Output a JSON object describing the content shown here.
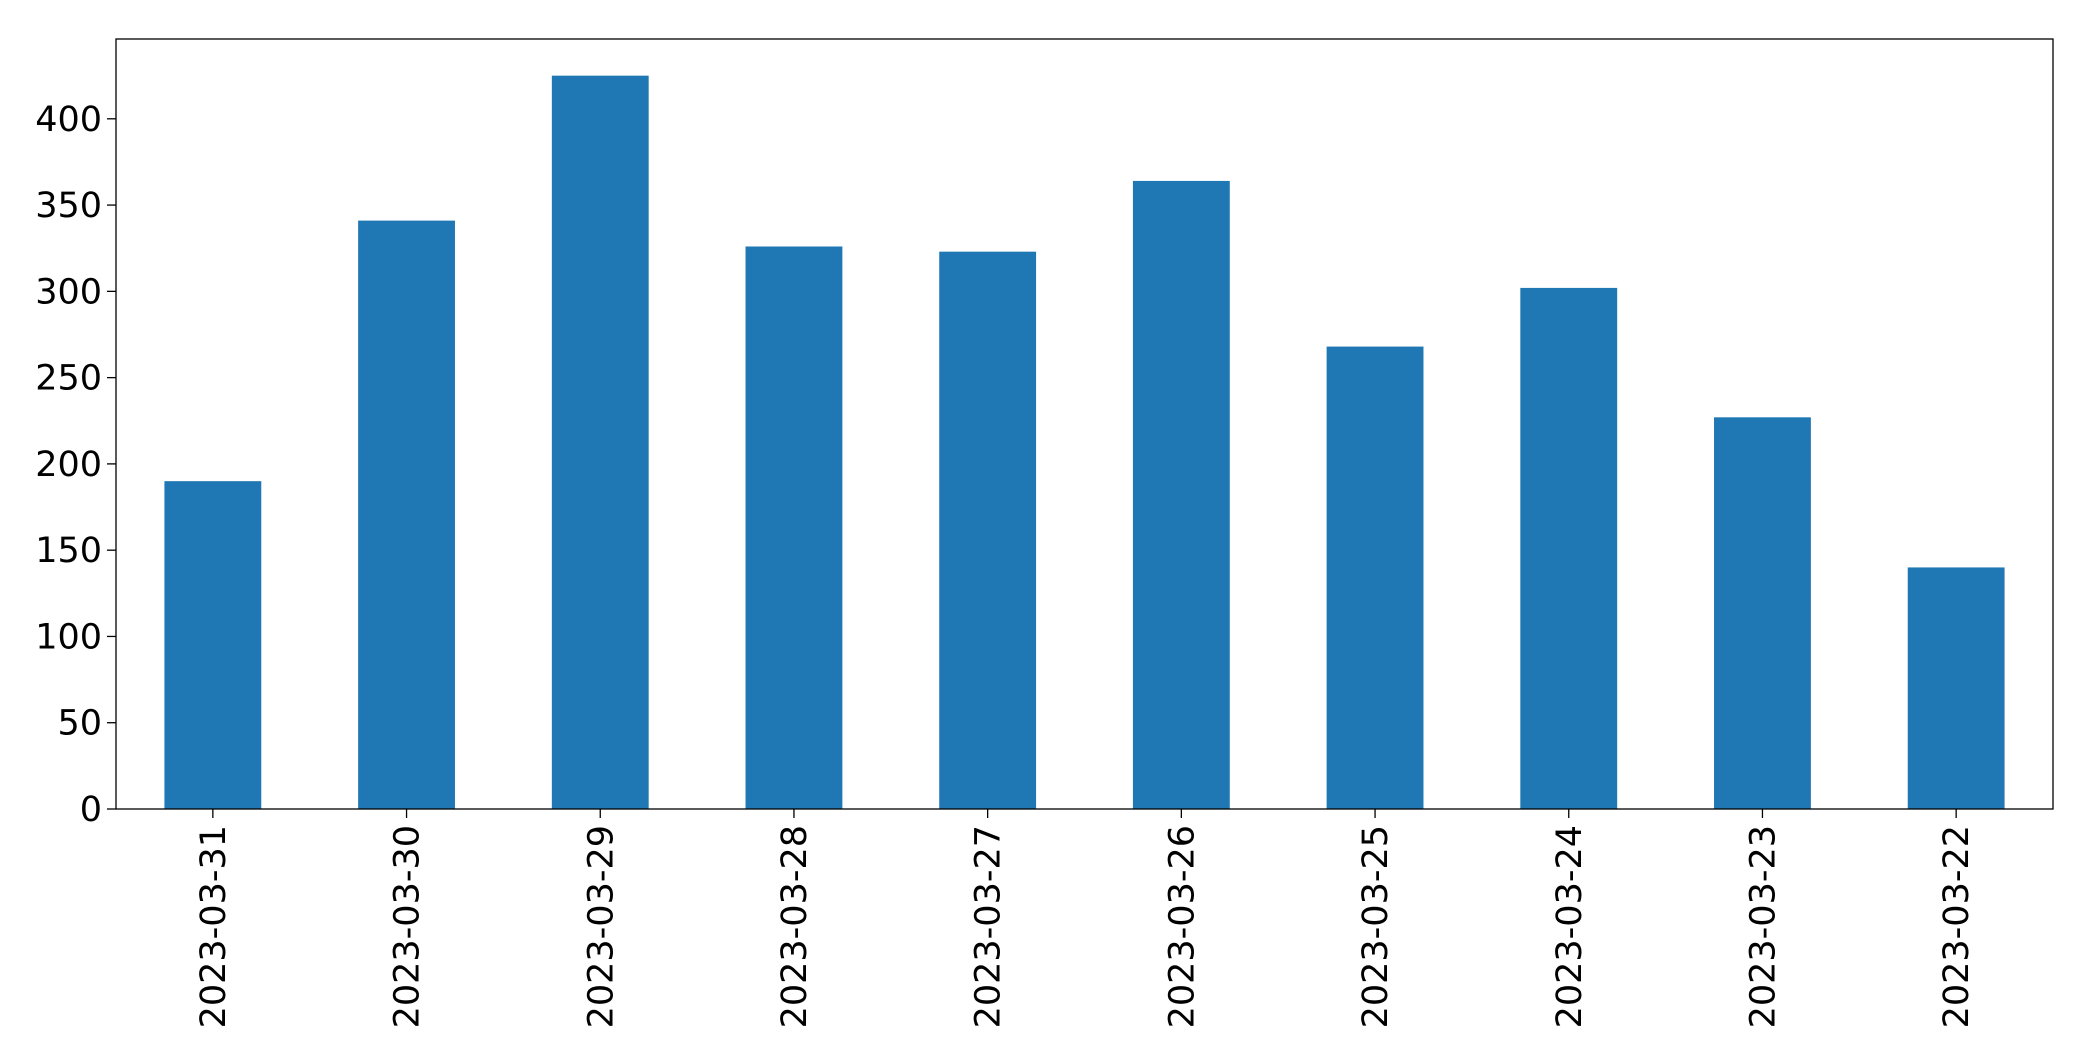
{
  "chart_data": {
    "type": "bar",
    "categories": [
      "2023-03-31",
      "2023-03-30",
      "2023-03-29",
      "2023-03-28",
      "2023-03-27",
      "2023-03-26",
      "2023-03-25",
      "2023-03-24",
      "2023-03-23",
      "2023-03-22"
    ],
    "values": [
      190,
      341,
      425,
      326,
      323,
      364,
      268,
      302,
      227,
      140
    ],
    "color": "#1f77b4",
    "ylim": [
      0,
      446.25
    ],
    "yticks": [
      0,
      50,
      100,
      150,
      200,
      250,
      300,
      350,
      400
    ],
    "grid": false
  }
}
